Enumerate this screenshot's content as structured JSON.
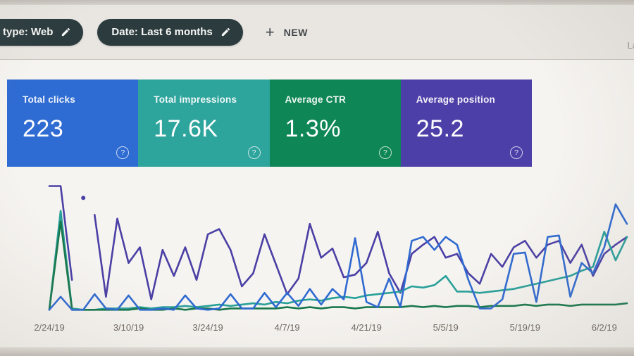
{
  "filter_bar": {
    "chips": [
      {
        "label": "type: Web",
        "icon": "pencil-icon",
        "clipped_left": true
      },
      {
        "label": "Date: Last 6 months",
        "icon": "pencil-icon",
        "clipped_left": false
      }
    ],
    "new_button": {
      "plus": "+",
      "label": "NEW"
    },
    "partial_right_text": "La"
  },
  "metric_cards": [
    {
      "label": "Total clicks",
      "value": "223",
      "color": "#2e6bd2",
      "help_icon": "?"
    },
    {
      "label": "Total impressions",
      "value": "17.6K",
      "color": "#2da49c",
      "help_icon": "?"
    },
    {
      "label": "Average CTR",
      "value": "1.3%",
      "color": "#0e8656",
      "help_icon": "?"
    },
    {
      "label": "Average position",
      "value": "25.2",
      "color": "#4c40a8",
      "help_icon": "?"
    }
  ],
  "chart_data": {
    "type": "line",
    "title": "",
    "xlabel": "",
    "ylabel": "",
    "grid": false,
    "legend_position": "none",
    "y_axis_visible": false,
    "value_units": "percent of chart height (no y-axis shown in screenshot; values estimated from pixels)",
    "ylim": [
      0,
      100
    ],
    "x_tick_labels": [
      "2/24/19",
      "3/10/19",
      "3/24/19",
      "4/7/19",
      "4/21/19",
      "5/5/19",
      "5/19/19",
      "6/2/19"
    ],
    "x_tick_indices": [
      0,
      7,
      14,
      21,
      28,
      35,
      42,
      49
    ],
    "series": [
      {
        "id": "average-position",
        "name": "Average position",
        "color": "#4a3fa5",
        "values": [
          97,
          97,
          25,
          null,
          75,
          12,
          72,
          38,
          50,
          10,
          48,
          28,
          50,
          25,
          60,
          64,
          48,
          20,
          30,
          60,
          37,
          14,
          26,
          68,
          42,
          49,
          27,
          29,
          38,
          62,
          30,
          15,
          45,
          52,
          58,
          42,
          45,
          30,
          22,
          45,
          35,
          50,
          55,
          42,
          52,
          55,
          38,
          52,
          28,
          45,
          52,
          58
        ]
      },
      {
        "id": "total-impressions",
        "name": "Total impressions",
        "color": "#28a09a",
        "values": [
          2,
          78,
          3,
          2,
          2,
          3,
          3,
          3,
          4,
          3,
          4,
          4,
          5,
          4,
          5,
          6,
          5,
          6,
          7,
          6,
          8,
          7,
          9,
          10,
          9,
          11,
          12,
          11,
          13,
          14,
          15,
          16,
          20,
          19,
          21,
          28,
          16,
          16,
          15,
          16,
          17,
          18,
          20,
          22,
          24,
          26,
          28,
          32,
          35,
          62,
          40,
          58
        ]
      },
      {
        "id": "average-ctr",
        "name": "Average CTR",
        "color": "#17774c",
        "values": [
          2,
          70,
          2,
          2,
          2,
          2,
          2,
          2,
          3,
          2,
          2,
          3,
          2,
          3,
          3,
          2,
          3,
          3,
          3,
          3,
          3,
          4,
          3,
          4,
          3,
          4,
          4,
          3,
          4,
          4,
          4,
          4,
          5,
          4,
          5,
          4,
          5,
          5,
          4,
          5,
          5,
          5,
          6,
          5,
          6,
          6,
          5,
          6,
          6,
          6,
          6,
          7
        ]
      },
      {
        "id": "total-clicks",
        "name": "Total clicks",
        "color": "#2f6ad1",
        "values": [
          2,
          12,
          2,
          2,
          14,
          3,
          2,
          13,
          2,
          2,
          3,
          2,
          13,
          3,
          2,
          3,
          14,
          3,
          3,
          15,
          4,
          15,
          5,
          18,
          6,
          18,
          10,
          57,
          8,
          4,
          26,
          4,
          55,
          58,
          48,
          58,
          52,
          25,
          3,
          3,
          10,
          45,
          46,
          8,
          58,
          59,
          12,
          38,
          30,
          50,
          83,
          68
        ]
      }
    ],
    "isolated_point": {
      "series": "average-position",
      "index": 3,
      "value": 88,
      "color": "#4a3fa5"
    }
  }
}
